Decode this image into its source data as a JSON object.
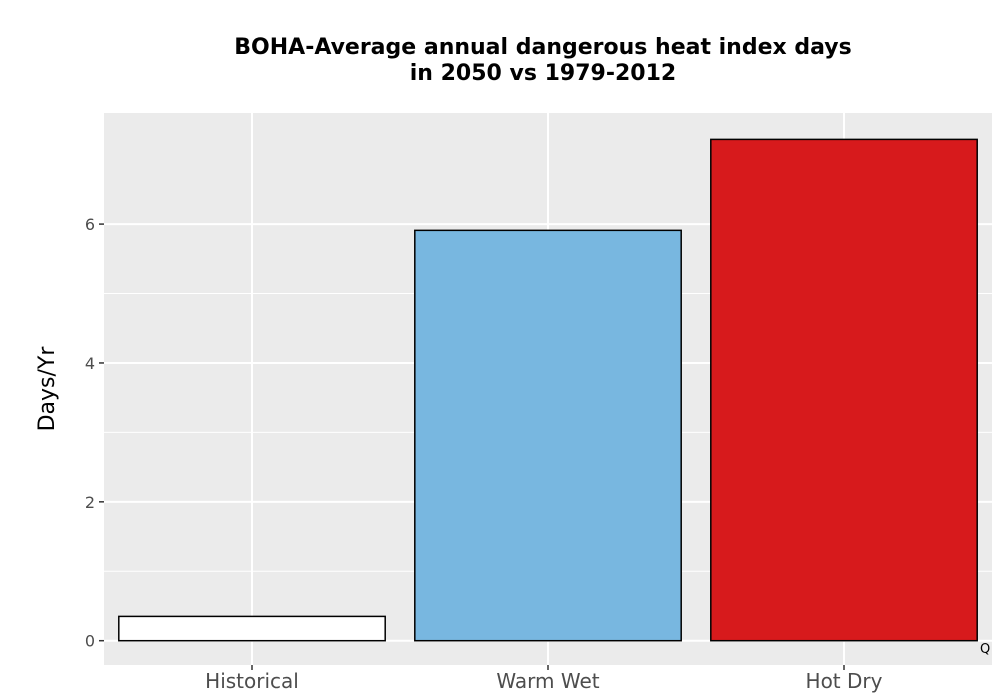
{
  "chart_data": {
    "type": "bar",
    "title": "BOHA-Average annual dangerous heat index days in 2050 vs 1979-2012",
    "title_lines": [
      "BOHA-Average annual dangerous heat index days",
      "in 2050 vs 1979-2012"
    ],
    "xlabel": "",
    "ylabel": "Days/Yr",
    "categories": [
      "Historical",
      "Warm Wet",
      "Hot Dry"
    ],
    "values": [
      0.35,
      5.91,
      7.22
    ],
    "bar_colors": [
      "#ffffff",
      "#78b7e0",
      "#d71a1c"
    ],
    "bar_outline": "#000000",
    "ylim": [
      -0.35,
      7.6
    ],
    "yticks": [
      0,
      2,
      4,
      6
    ],
    "panel_background": "#ebebeb",
    "grid": true,
    "grid_color": "#ffffff",
    "legend": "none",
    "corner_mark": "Q"
  }
}
